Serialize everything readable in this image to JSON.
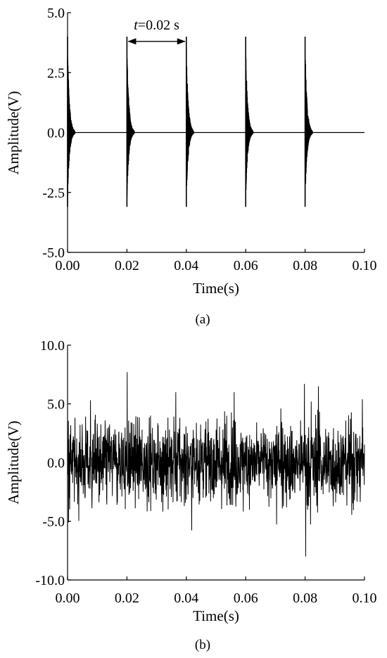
{
  "figure": {
    "panel_a_label": "(a)",
    "panel_b_label": "(b)"
  },
  "colors": {
    "ink": "#000000",
    "background": "#ffffff"
  },
  "chart_data": [
    {
      "type": "line",
      "panel": "(a)",
      "xlabel": "Time(s)",
      "ylabel": "Amplitude(V)",
      "xlim": [
        0,
        0.1
      ],
      "ylim": [
        -5,
        5
      ],
      "xticks": [
        "0.00",
        "0.02",
        "0.04",
        "0.06",
        "0.08",
        "0.10"
      ],
      "yticks": [
        "5.0",
        "2.5",
        "0.0",
        "-2.5",
        "-5.0"
      ],
      "signal": {
        "description": "periodic decaying impulse train",
        "period_s": 0.02,
        "impulse_times_s": [
          0.0,
          0.02,
          0.04,
          0.06,
          0.08
        ],
        "peak_max_V": 4.0,
        "peak_min_V": -3.1,
        "decay_duration_s": 0.0025,
        "baseline_V": 0.0
      },
      "annotation": {
        "text_italic": "t",
        "text_rest": "=0.02 s",
        "from_x": 0.02,
        "to_x": 0.04,
        "y": 3.8
      },
      "grid": false
    },
    {
      "type": "line",
      "panel": "(b)",
      "xlabel": "Time(s)",
      "ylabel": "Amplitude(V)",
      "xlim": [
        0,
        0.1
      ],
      "ylim": [
        -10,
        10
      ],
      "xticks": [
        "0.00",
        "0.02",
        "0.04",
        "0.06",
        "0.08",
        "0.10"
      ],
      "yticks": [
        "10.0",
        "5.0",
        "0.0",
        "-5.0",
        "-10.0"
      ],
      "signal": {
        "description": "impulse train buried in broadband noise",
        "noise_std_V": 2.0,
        "max_V": 7.7,
        "min_V": -8.0,
        "notable_peaks": [
          {
            "x": 0.0201,
            "y": 7.7
          },
          {
            "x": 0.0798,
            "y": 6.7
          },
          {
            "x": 0.0802,
            "y": -8.0
          },
          {
            "x": 0.0845,
            "y": 6.5
          }
        ]
      },
      "grid": false
    }
  ]
}
